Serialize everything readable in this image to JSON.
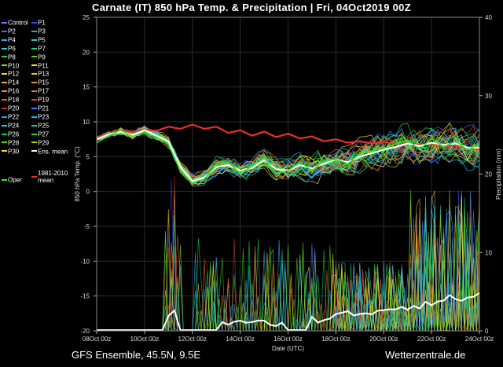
{
  "title": "Carnate  (IT)  850 hPa Temp. & Precipitation | Fri, 04Oct2019 00Z",
  "footer": {
    "model": "GFS Ensemble, 45.5N, 9.5E",
    "source": "Wetterzentrale.de"
  },
  "legend": [
    {
      "label": "Control",
      "color": "#6f7cff"
    },
    {
      "label": "P1",
      "color": "#3c3cff"
    },
    {
      "label": "P2",
      "color": "#3f6bff"
    },
    {
      "label": "P3",
      "color": "#2fa0ff"
    },
    {
      "label": "P4",
      "color": "#3ca7ff"
    },
    {
      "label": "P5",
      "color": "#28c8e8"
    },
    {
      "label": "P6",
      "color": "#2ad2c8"
    },
    {
      "label": "P7",
      "color": "#21d17f"
    },
    {
      "label": "P8",
      "color": "#27d43a"
    },
    {
      "label": "P9",
      "color": "#4dd41c"
    },
    {
      "label": "P10",
      "color": "#7fd91a"
    },
    {
      "label": "P11",
      "color": "#f0ea1a"
    },
    {
      "label": "P12",
      "color": "#f5d72a"
    },
    {
      "label": "P13",
      "color": "#f0c22b"
    },
    {
      "label": "P14",
      "color": "#f2b02d"
    },
    {
      "label": "P15",
      "color": "#ef9a2a"
    },
    {
      "label": "P16",
      "color": "#ee8a2a"
    },
    {
      "label": "P17",
      "color": "#ee6f2a"
    },
    {
      "label": "P18",
      "color": "#e85a2a"
    },
    {
      "label": "P19",
      "color": "#d8402a"
    },
    {
      "label": "P20",
      "color": "#bb2e2e"
    },
    {
      "label": "P21",
      "color": "#4a7cff"
    },
    {
      "label": "P22",
      "color": "#2f9bff"
    },
    {
      "label": "P23",
      "color": "#1fb6ff"
    },
    {
      "label": "P24",
      "color": "#20d0d8"
    },
    {
      "label": "P25",
      "color": "#18d29a"
    },
    {
      "label": "P26",
      "color": "#1ad05a"
    },
    {
      "label": "P27",
      "color": "#2ed52e"
    },
    {
      "label": "P28",
      "color": "#55d420"
    },
    {
      "label": "P29",
      "color": "#8ad81a"
    },
    {
      "label": "P30",
      "color": "#f2e020"
    },
    {
      "label": "Ens. mean",
      "color": "#ffffff"
    },
    {
      "label": "1981-2010 mean",
      "color": "#e83030"
    },
    {
      "label": "Oper",
      "color": "#22ee22"
    }
  ],
  "chart_data": {
    "type": "line",
    "ylabel": "850 hPa Temp. (°C)",
    "y2label": "Precipitation (mm)",
    "xlabel": "Date (UTC)",
    "ylim": [
      -20,
      25
    ],
    "y2lim": [
      0,
      40
    ],
    "yticks": [
      25,
      20,
      15,
      10,
      5,
      0,
      -5,
      -10,
      -15,
      -20
    ],
    "y2ticks": [
      40,
      30,
      20,
      10,
      0
    ],
    "xlim": [
      0,
      16
    ],
    "xticks": [
      {
        "x": 0,
        "label": "08Oct 00z"
      },
      {
        "x": 2,
        "label": "10Oct 00z"
      },
      {
        "x": 4,
        "label": "12Oct 00z"
      },
      {
        "x": 6,
        "label": "14Oct 00z"
      },
      {
        "x": 8,
        "label": "16Oct 00z"
      },
      {
        "x": 10,
        "label": "18Oct 00z"
      },
      {
        "x": 12,
        "label": "20Oct 00z"
      },
      {
        "x": 14,
        "label": "22Oct 00z"
      },
      {
        "x": 16,
        "label": "24Oct 00z"
      }
    ],
    "grid": true,
    "series": [
      {
        "name": "1981-2010 mean",
        "color": "#e83030",
        "width": 2.2,
        "x": [
          0,
          0.5,
          1,
          1.5,
          2,
          2.5,
          3,
          3.5,
          4,
          4.5,
          5,
          5.5,
          6,
          6.5,
          7,
          7.5,
          8,
          8.5,
          9,
          9.5,
          10,
          10.5,
          11,
          11.5,
          12,
          12.5,
          13,
          13.5,
          14,
          14.5,
          15,
          15.5,
          16
        ],
        "y": [
          7.8,
          8.3,
          8.8,
          8.5,
          8.9,
          8.7,
          9.3,
          9.0,
          9.6,
          9.0,
          9.3,
          8.4,
          8.8,
          8.0,
          8.6,
          7.8,
          8.3,
          7.6,
          7.9,
          7.2,
          7.5,
          7.0,
          7.2,
          6.9,
          7.1,
          6.8,
          6.9,
          6.6,
          6.9,
          6.4,
          6.6,
          6.3,
          6.2
        ]
      },
      {
        "name": "Ens. mean",
        "color": "#ffffff",
        "width": 2.2,
        "x": [
          0,
          0.5,
          1,
          1.5,
          2,
          2.5,
          3,
          3.5,
          4,
          4.5,
          5,
          5.5,
          6,
          6.5,
          7,
          7.5,
          8,
          8.5,
          9,
          9.5,
          10,
          10.5,
          11,
          11.5,
          12,
          12.5,
          13,
          13.5,
          14,
          14.5,
          15,
          15.5,
          16
        ],
        "y": [
          7.5,
          8.2,
          8.6,
          8.1,
          8.8,
          8.0,
          7.2,
          3.5,
          1.5,
          2.0,
          3.5,
          3.8,
          3.0,
          3.4,
          4.5,
          3.2,
          3.0,
          3.8,
          3.3,
          4.0,
          4.6,
          4.2,
          5.0,
          5.5,
          6.0,
          6.4,
          6.9,
          6.5,
          7.0,
          6.7,
          6.9,
          6.3,
          6.3
        ]
      },
      {
        "name": "Oper",
        "color": "#22ee22",
        "width": 1.6,
        "x": [
          0,
          0.5,
          1,
          1.5,
          2,
          2.5,
          3,
          3.5,
          4,
          4.5,
          5,
          5.5,
          6,
          6.5,
          7,
          7.5,
          8,
          8.5,
          9,
          9.5,
          10,
          10.5,
          11,
          11.5,
          12,
          12.5,
          13,
          13.5,
          14,
          14.5,
          15,
          15.5,
          16
        ],
        "y": [
          7.0,
          8.0,
          8.8,
          7.9,
          8.5,
          7.8,
          6.8,
          3.0,
          1.2,
          1.8,
          3.8,
          4.2,
          2.6,
          3.6,
          4.8,
          2.6,
          3.0,
          4.2,
          3.0,
          4.4,
          4.6,
          4.0,
          5.4,
          5.8,
          6.2,
          6.8,
          7.4,
          6.0,
          7.6,
          6.4,
          7.2,
          6.0,
          6.8
        ]
      }
    ]
  }
}
